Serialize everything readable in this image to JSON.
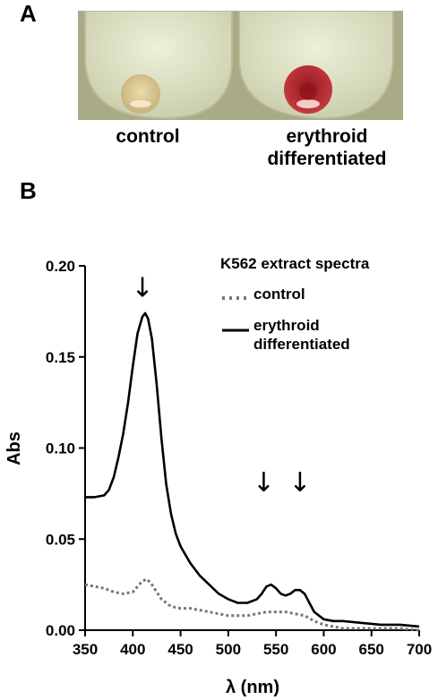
{
  "panels": {
    "a": {
      "label": "A",
      "captions": {
        "control": "control",
        "erythroid_line1": "erythroid",
        "erythroid_line2": "differentiated"
      },
      "pellet_colors": {
        "control": "#d9c79a",
        "erythroid": "#b5202a"
      }
    },
    "b": {
      "label": "B"
    }
  },
  "chart_data": {
    "type": "line",
    "title": "K562 extract spectra",
    "xlabel": "λ (nm)",
    "ylabel": "Abs",
    "xlim": [
      350,
      700
    ],
    "ylim": [
      0,
      0.2
    ],
    "xticks": [
      350,
      400,
      450,
      500,
      550,
      600,
      650,
      700
    ],
    "xtick_labels": [
      "350",
      "400",
      "450",
      "500",
      "550",
      "600",
      "650",
      "700"
    ],
    "yticks": [
      0,
      0.05,
      0.1,
      0.15,
      0.2
    ],
    "ytick_labels": [
      "0.00",
      "0.05",
      "0.10",
      "0.15",
      "0.20"
    ],
    "legend_position": "top-right",
    "series": [
      {
        "name": "control",
        "style": "dotted",
        "color": "#777777",
        "x": [
          350,
          360,
          370,
          380,
          390,
          400,
          405,
          410,
          415,
          420,
          430,
          440,
          450,
          460,
          470,
          480,
          490,
          500,
          510,
          520,
          530,
          540,
          550,
          560,
          570,
          580,
          590,
          600,
          610,
          620,
          640,
          660,
          680,
          700
        ],
        "y": [
          0.025,
          0.024,
          0.023,
          0.021,
          0.02,
          0.021,
          0.024,
          0.027,
          0.028,
          0.025,
          0.017,
          0.013,
          0.012,
          0.012,
          0.011,
          0.01,
          0.009,
          0.008,
          0.008,
          0.008,
          0.009,
          0.01,
          0.01,
          0.01,
          0.009,
          0.008,
          0.005,
          0.003,
          0.002,
          0.001,
          0.001,
          0.001,
          0.001,
          0.0
        ]
      },
      {
        "name": "erythroid differentiated",
        "name_line1": "erythroid",
        "name_line2": "differentiated",
        "style": "solid",
        "color": "#000000",
        "x": [
          350,
          360,
          370,
          375,
          380,
          385,
          390,
          395,
          400,
          405,
          410,
          413,
          416,
          420,
          425,
          430,
          435,
          440,
          445,
          450,
          460,
          470,
          480,
          490,
          500,
          510,
          520,
          530,
          535,
          540,
          545,
          550,
          555,
          560,
          565,
          570,
          575,
          580,
          585,
          590,
          600,
          610,
          620,
          640,
          660,
          680,
          700
        ],
        "y": [
          0.073,
          0.073,
          0.074,
          0.077,
          0.084,
          0.095,
          0.108,
          0.125,
          0.145,
          0.163,
          0.172,
          0.174,
          0.171,
          0.16,
          0.135,
          0.105,
          0.08,
          0.064,
          0.053,
          0.046,
          0.037,
          0.03,
          0.025,
          0.02,
          0.017,
          0.015,
          0.015,
          0.017,
          0.02,
          0.024,
          0.025,
          0.023,
          0.02,
          0.019,
          0.02,
          0.022,
          0.022,
          0.02,
          0.015,
          0.01,
          0.006,
          0.005,
          0.005,
          0.004,
          0.003,
          0.003,
          0.002
        ]
      }
    ],
    "annotations": [
      {
        "text": "↓",
        "x": 410,
        "y": 0.19
      },
      {
        "text": "↓",
        "x": 537,
        "y": 0.083
      },
      {
        "text": "↓",
        "x": 575,
        "y": 0.083
      }
    ]
  }
}
